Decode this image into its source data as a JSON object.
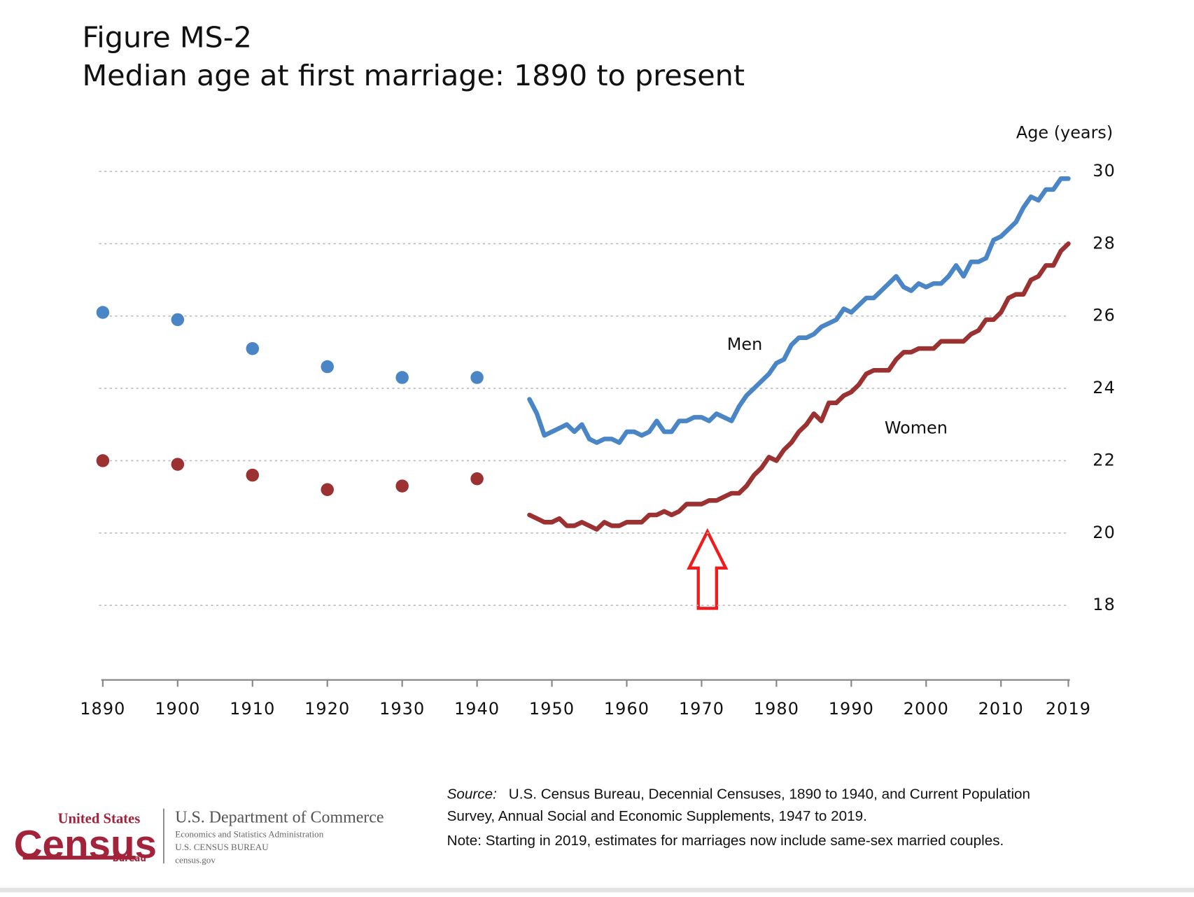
{
  "chart_data": {
    "type": "line",
    "title": "Figure MS-2",
    "subtitle": "Median age at first marriage: 1890 to present",
    "y_label": "Age (years)",
    "xlim": [
      1890,
      2019
    ],
    "xticks": [
      1890,
      1900,
      1910,
      1920,
      1930,
      1940,
      1950,
      1960,
      1970,
      1980,
      1990,
      2000,
      2010,
      2019
    ],
    "ylim": [
      16,
      30
    ],
    "yticks": [
      18,
      20,
      22,
      24,
      26,
      28,
      30
    ],
    "grid": true,
    "dot_x": [
      1890,
      1900,
      1910,
      1920,
      1930,
      1940
    ],
    "x": [
      1947,
      1948,
      1949,
      1950,
      1951,
      1952,
      1953,
      1954,
      1955,
      1956,
      1957,
      1958,
      1959,
      1960,
      1961,
      1962,
      1963,
      1964,
      1965,
      1966,
      1967,
      1968,
      1969,
      1970,
      1971,
      1972,
      1973,
      1974,
      1975,
      1976,
      1977,
      1978,
      1979,
      1980,
      1981,
      1982,
      1983,
      1984,
      1985,
      1986,
      1987,
      1988,
      1989,
      1990,
      1991,
      1992,
      1993,
      1994,
      1995,
      1996,
      1997,
      1998,
      1999,
      2000,
      2001,
      2002,
      2003,
      2004,
      2005,
      2006,
      2007,
      2008,
      2009,
      2010,
      2011,
      2012,
      2013,
      2014,
      2015,
      2016,
      2017,
      2018,
      2019
    ],
    "series": [
      {
        "name": "Men",
        "color": "#4a86c5",
        "dot_values": [
          26.1,
          25.9,
          25.1,
          24.6,
          24.3,
          24.3
        ],
        "values": [
          23.7,
          23.3,
          22.7,
          22.8,
          22.9,
          23.0,
          22.8,
          23.0,
          22.6,
          22.5,
          22.6,
          22.6,
          22.5,
          22.8,
          22.8,
          22.7,
          22.8,
          23.1,
          22.8,
          22.8,
          23.1,
          23.1,
          23.2,
          23.2,
          23.1,
          23.3,
          23.2,
          23.1,
          23.5,
          23.8,
          24.0,
          24.2,
          24.4,
          24.7,
          24.8,
          25.2,
          25.4,
          25.4,
          25.5,
          25.7,
          25.8,
          25.9,
          26.2,
          26.1,
          26.3,
          26.5,
          26.5,
          26.7,
          26.9,
          27.1,
          26.8,
          26.7,
          26.9,
          26.8,
          26.9,
          26.9,
          27.1,
          27.4,
          27.1,
          27.5,
          27.5,
          27.6,
          28.1,
          28.2,
          28.4,
          28.6,
          29.0,
          29.3,
          29.2,
          29.5,
          29.5,
          29.8,
          29.8
        ]
      },
      {
        "name": "Women",
        "color": "#9b3131",
        "dot_values": [
          22.0,
          21.9,
          21.6,
          21.2,
          21.3,
          21.5
        ],
        "values": [
          20.5,
          20.4,
          20.3,
          20.3,
          20.4,
          20.2,
          20.2,
          20.3,
          20.2,
          20.1,
          20.3,
          20.2,
          20.2,
          20.3,
          20.3,
          20.3,
          20.5,
          20.5,
          20.6,
          20.5,
          20.6,
          20.8,
          20.8,
          20.8,
          20.9,
          20.9,
          21.0,
          21.1,
          21.1,
          21.3,
          21.6,
          21.8,
          22.1,
          22.0,
          22.3,
          22.5,
          22.8,
          23.0,
          23.3,
          23.1,
          23.6,
          23.6,
          23.8,
          23.9,
          24.1,
          24.4,
          24.5,
          24.5,
          24.5,
          24.8,
          25.0,
          25.0,
          25.1,
          25.1,
          25.1,
          25.3,
          25.3,
          25.3,
          25.3,
          25.5,
          25.6,
          25.9,
          25.9,
          26.1,
          26.5,
          26.6,
          26.6,
          27.0,
          27.1,
          27.4,
          27.4,
          27.8,
          28.0
        ]
      }
    ]
  },
  "footer": {
    "logo": {
      "top": "United States",
      "main": "Census",
      "bottom": "Bureau"
    },
    "agency": "U.S. Department of Commerce",
    "agency_lines": [
      "Economics and Statistics Administration",
      "U.S. CENSUS BUREAU",
      "census.gov"
    ],
    "source_label": "Source:",
    "source_lines": [
      "U.S. Census Bureau, Decennial Censuses, 1890 to 1940, and Current Population",
      "Survey, Annual Social and Economic Supplements, 1947 to 2019."
    ],
    "note": "Note: Starting in 2019, estimates for marriages now include same-sex married couples."
  }
}
